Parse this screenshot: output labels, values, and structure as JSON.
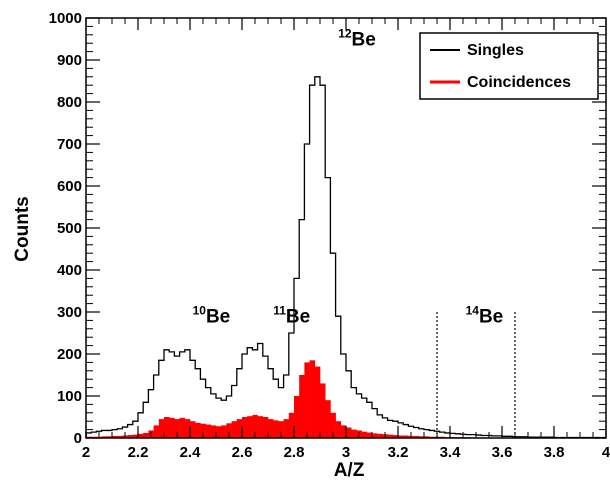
{
  "chart_data": {
    "type": "bar",
    "xlabel": "A/Z",
    "ylabel": "Counts",
    "xlim": [
      2,
      4
    ],
    "ylim": [
      0,
      1000
    ],
    "x_ticks": [
      "2",
      "2.2",
      "2.4",
      "2.6",
      "2.8",
      "3",
      "3.2",
      "3.4",
      "3.6",
      "3.8",
      "4"
    ],
    "y_ticks": [
      "0",
      "100",
      "200",
      "300",
      "400",
      "500",
      "600",
      "700",
      "800",
      "900",
      "1000"
    ],
    "bin_start": 2.0,
    "bin_width": 0.02,
    "legend": {
      "placement": "top-right"
    },
    "series": [
      {
        "name": "Singles",
        "style": "step",
        "color": "#000000",
        "values": [
          12,
          14,
          16,
          18,
          18,
          20,
          22,
          26,
          32,
          40,
          60,
          85,
          115,
          150,
          185,
          210,
          205,
          195,
          205,
          210,
          185,
          165,
          140,
          120,
          105,
          95,
          90,
          100,
          125,
          165,
          200,
          215,
          210,
          225,
          195,
          165,
          140,
          120,
          150,
          250,
          380,
          520,
          700,
          840,
          860,
          840,
          620,
          440,
          290,
          200,
          160,
          120,
          105,
          95,
          85,
          70,
          55,
          48,
          42,
          40,
          36,
          32,
          28,
          25,
          22,
          20,
          18,
          16,
          14,
          12,
          11,
          10,
          9,
          8,
          8,
          7,
          6,
          6,
          5,
          5,
          4,
          4,
          3,
          3,
          3,
          2,
          2,
          2,
          2,
          2,
          1,
          1,
          1,
          1,
          1,
          1,
          1,
          1,
          1,
          1
        ]
      },
      {
        "name": "Coincidences",
        "style": "filled-step",
        "color": "#ff0000",
        "values": [
          3,
          3,
          3,
          4,
          4,
          5,
          5,
          6,
          7,
          8,
          10,
          12,
          18,
          30,
          45,
          50,
          48,
          45,
          48,
          45,
          40,
          36,
          34,
          32,
          30,
          28,
          30,
          35,
          40,
          45,
          50,
          52,
          55,
          52,
          50,
          45,
          42,
          40,
          45,
          60,
          100,
          150,
          180,
          185,
          170,
          130,
          90,
          60,
          40,
          30,
          25,
          20,
          18,
          15,
          13,
          11,
          10,
          9,
          8,
          7,
          6,
          6,
          5,
          5,
          4,
          4,
          3,
          3,
          3,
          2,
          2,
          2,
          2,
          2,
          1,
          1,
          1,
          1,
          1,
          1,
          1,
          1,
          1,
          1,
          1,
          1,
          1,
          1,
          1,
          1,
          1,
          1,
          1,
          1,
          1,
          1,
          1,
          1,
          1,
          1
        ]
      }
    ],
    "annotations": [
      {
        "element": "Be",
        "mass": "10",
        "x": 2.41,
        "y": 275
      },
      {
        "element": "Be",
        "mass": "11",
        "x": 2.72,
        "y": 275
      },
      {
        "element": "Be",
        "mass": "12",
        "x": 2.97,
        "y": 935
      },
      {
        "element": "Be",
        "mass": "14",
        "x": 3.46,
        "y": 275
      }
    ],
    "markers": [
      {
        "x": 3.35,
        "y": 300,
        "style": "dotted"
      },
      {
        "x": 3.65,
        "y": 300,
        "style": "dotted"
      }
    ]
  }
}
